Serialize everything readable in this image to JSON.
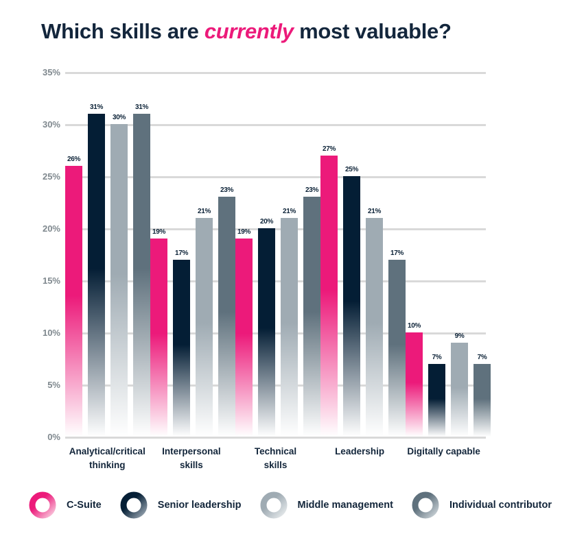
{
  "title": {
    "prefix": "Which skills are ",
    "highlight": "currently",
    "suffix": " most valuable?"
  },
  "colors": {
    "pink": "#EC1A7A",
    "pink_fade": "#F9C6DC",
    "navy": "#041E35",
    "navy_fade": "#93A0AC",
    "lightgray": "#9FABB3",
    "lightgray_fade": "#E4E8EA",
    "slate": "#5F717D",
    "slate_fade": "#C7CFD4",
    "grid": "#D9D9D9",
    "tick_text": "#7F888E",
    "label_text": "#12253A"
  },
  "chart_data": {
    "type": "bar",
    "title": "Which skills are currently most valuable?",
    "categories": [
      "Analytical/critical thinking",
      "Interpersonal skills",
      "Technical skills",
      "Leadership",
      "Digitally capable"
    ],
    "category_lines": [
      [
        "Analytical/critical",
        "thinking"
      ],
      [
        "Interpersonal",
        "skills"
      ],
      [
        "Technical",
        "skills"
      ],
      [
        "Leadership"
      ],
      [
        "Digitally capable"
      ]
    ],
    "series": [
      {
        "name": "C-Suite",
        "color_key": "pink",
        "values": [
          26,
          19,
          19,
          27,
          10
        ]
      },
      {
        "name": "Senior leadership",
        "color_key": "navy",
        "values": [
          31,
          17,
          20,
          25,
          7
        ]
      },
      {
        "name": "Middle management",
        "color_key": "lightgray",
        "values": [
          30,
          21,
          21,
          21,
          9
        ]
      },
      {
        "name": "Individual contributor",
        "color_key": "slate",
        "values": [
          31,
          23,
          23,
          17,
          7
        ]
      }
    ],
    "value_suffix": "%",
    "yticks": [
      "35%",
      "30%",
      "25%",
      "20%",
      "15%",
      "10%",
      "5%",
      "0%"
    ],
    "ylim": [
      0,
      35
    ],
    "grid": true,
    "legend_position": "bottom"
  },
  "legend": {
    "items": [
      {
        "label": "C-Suite",
        "color_key": "pink"
      },
      {
        "label": "Senior leadership",
        "color_key": "navy"
      },
      {
        "label": "Middle management",
        "color_key": "lightgray"
      },
      {
        "label": "Individual contributor",
        "color_key": "slate"
      }
    ]
  }
}
